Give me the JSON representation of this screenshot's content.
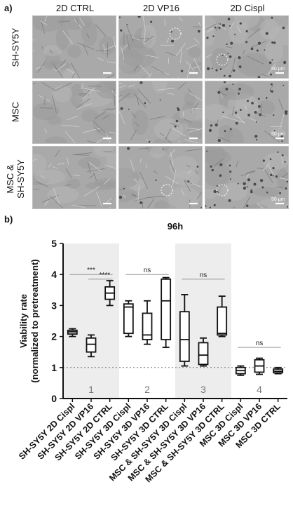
{
  "panel_a": {
    "label": "a)",
    "columns": [
      "2D CTRL",
      "2D VP16",
      "2D Cispl"
    ],
    "rows": [
      {
        "label_lines": [
          "SH-SY5Y"
        ]
      },
      {
        "label_lines": [
          "MSC"
        ]
      },
      {
        "label_lines": [
          "MSC &",
          "SH-SY5Y"
        ]
      }
    ],
    "scale_bar_text": "50 µm"
  },
  "panel_b": {
    "label": "b)"
  },
  "chart_data": {
    "type": "box",
    "title": "96h",
    "ylabel_lines": [
      "Viability rate",
      "(normalized to pretreatment)"
    ],
    "ylim": [
      0,
      5
    ],
    "yticks": [
      0,
      1,
      2,
      3,
      4,
      5
    ],
    "reference_line": 1,
    "group_labels": [
      "1",
      "2",
      "3",
      "4"
    ],
    "shaded_groups": [
      "1",
      "3"
    ],
    "categories": [
      "SH-SY5Y 2D Cispl",
      "SH-SY5Y 2D VP16",
      "SH-SY5Y 2D CTRL",
      "SH-SY5Y 3D Cispl",
      "SH-SY5Y 3D VP16",
      "SH-SY5Y 3D CTRL",
      "MSC & SH-SY5Y 3D Cispl",
      "MSC & SH-SY5Y 3D VP16",
      "MSC & SH-SY5Y 3D CTRL",
      "MSC 3D Cispl",
      "MSC 3D VP16",
      "MSC 3D CTRL"
    ],
    "boxes": [
      {
        "min": 2.0,
        "q1": 2.08,
        "median": 2.15,
        "q3": 2.2,
        "max": 2.25
      },
      {
        "min": 1.35,
        "q1": 1.5,
        "median": 1.75,
        "q3": 1.95,
        "max": 2.05
      },
      {
        "min": 3.0,
        "q1": 3.2,
        "median": 3.4,
        "q3": 3.6,
        "max": 3.8
      },
      {
        "min": 2.0,
        "q1": 2.1,
        "median": 2.95,
        "q3": 3.05,
        "max": 3.15
      },
      {
        "min": 1.75,
        "q1": 1.9,
        "median": 2.05,
        "q3": 2.75,
        "max": 3.15
      },
      {
        "min": 1.65,
        "q1": 1.9,
        "median": 3.15,
        "q3": 3.85,
        "max": 3.9
      },
      {
        "min": 1.05,
        "q1": 1.2,
        "median": 1.9,
        "q3": 2.8,
        "max": 3.35
      },
      {
        "min": 1.05,
        "q1": 1.1,
        "median": 1.4,
        "q3": 1.8,
        "max": 1.95
      },
      {
        "min": 2.0,
        "q1": 2.05,
        "median": 2.1,
        "q3": 2.95,
        "max": 3.3
      },
      {
        "min": 0.75,
        "q1": 0.8,
        "median": 0.9,
        "q3": 1.0,
        "max": 1.05
      },
      {
        "min": 0.78,
        "q1": 0.85,
        "median": 1.05,
        "q3": 1.25,
        "max": 1.3
      },
      {
        "min": 0.8,
        "q1": 0.83,
        "median": 0.88,
        "q3": 0.95,
        "max": 1.0
      }
    ],
    "significance": [
      {
        "text": "***",
        "from": 0,
        "to": 2,
        "y": 4.0
      },
      {
        "text": "****",
        "from": 1,
        "to": 2,
        "y": 3.85
      },
      {
        "text": "ns",
        "from": 3,
        "to": 5,
        "y": 4.0
      },
      {
        "text": "ns",
        "from": 6,
        "to": 8,
        "y": 3.85
      },
      {
        "text": "ns",
        "from": 9,
        "to": 11,
        "y": 1.65
      }
    ]
  }
}
